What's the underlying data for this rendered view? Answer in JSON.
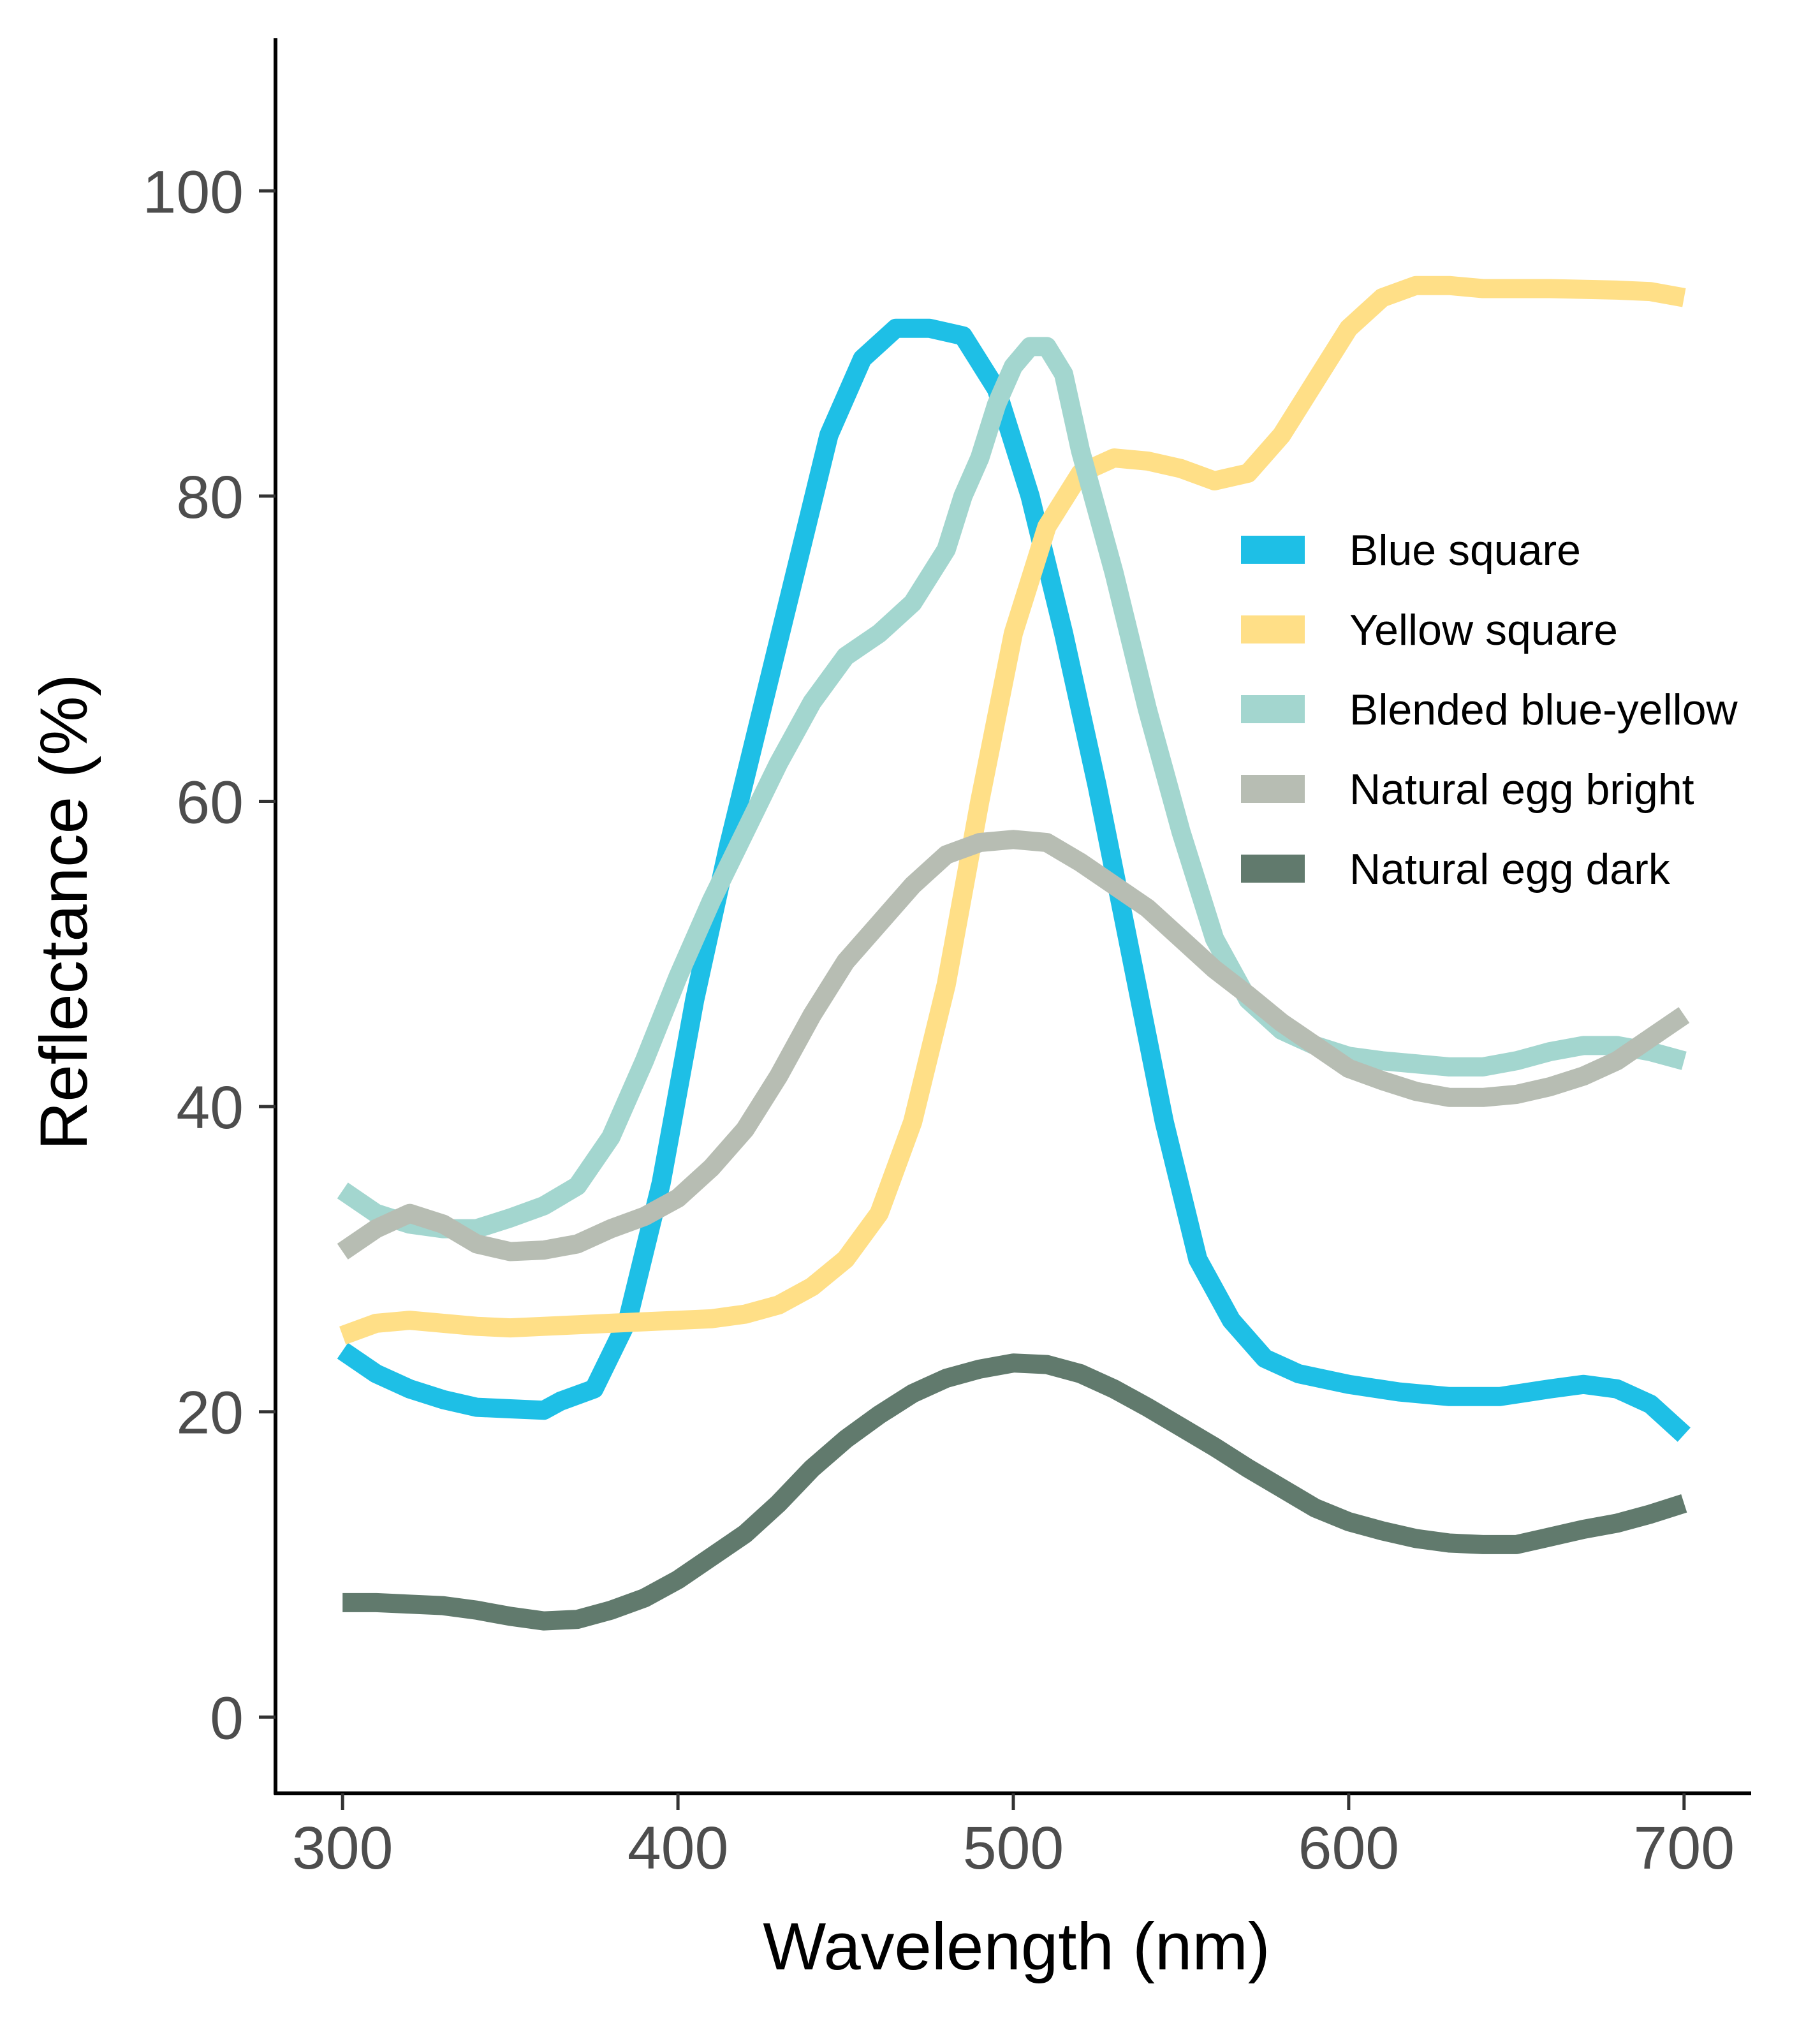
{
  "chart_data": {
    "type": "line",
    "title": "",
    "xlabel": "Wavelength (nm)",
    "ylabel": "Reflectance (%)",
    "xlim": [
      280,
      720
    ],
    "ylim": [
      -5,
      110
    ],
    "xticks": [
      300,
      400,
      500,
      600,
      700
    ],
    "yticks": [
      0,
      20,
      40,
      60,
      80,
      100
    ],
    "grid": false,
    "legend_position": "right",
    "series": [
      {
        "name": "Blue square",
        "color": "#1EBFE6",
        "points": [
          [
            300,
            24
          ],
          [
            310,
            22.5
          ],
          [
            320,
            21.5
          ],
          [
            330,
            20.8
          ],
          [
            340,
            20.3
          ],
          [
            350,
            20.2
          ],
          [
            360,
            20.1
          ],
          [
            365,
            20.7
          ],
          [
            375,
            21.5
          ],
          [
            385,
            26
          ],
          [
            395,
            35
          ],
          [
            405,
            47
          ],
          [
            415,
            57
          ],
          [
            425,
            66
          ],
          [
            435,
            75
          ],
          [
            445,
            84
          ],
          [
            455,
            89
          ],
          [
            465,
            91
          ],
          [
            475,
            91
          ],
          [
            485,
            90.5
          ],
          [
            495,
            87
          ],
          [
            505,
            80
          ],
          [
            515,
            71
          ],
          [
            525,
            61
          ],
          [
            535,
            50
          ],
          [
            545,
            39
          ],
          [
            555,
            30
          ],
          [
            565,
            26
          ],
          [
            575,
            23.5
          ],
          [
            585,
            22.5
          ],
          [
            600,
            21.8
          ],
          [
            615,
            21.3
          ],
          [
            630,
            21
          ],
          [
            645,
            21
          ],
          [
            660,
            21.5
          ],
          [
            670,
            21.8
          ],
          [
            680,
            21.5
          ],
          [
            690,
            20.5
          ],
          [
            700,
            18.5
          ]
        ]
      },
      {
        "name": "Yellow square",
        "color": "#FFDF87",
        "points": [
          [
            300,
            25
          ],
          [
            310,
            25.8
          ],
          [
            320,
            26
          ],
          [
            330,
            25.8
          ],
          [
            340,
            25.6
          ],
          [
            350,
            25.5
          ],
          [
            360,
            25.6
          ],
          [
            370,
            25.7
          ],
          [
            380,
            25.8
          ],
          [
            390,
            25.9
          ],
          [
            400,
            26
          ],
          [
            410,
            26.1
          ],
          [
            420,
            26.4
          ],
          [
            430,
            27
          ],
          [
            440,
            28.2
          ],
          [
            450,
            30
          ],
          [
            460,
            33
          ],
          [
            470,
            39
          ],
          [
            480,
            48
          ],
          [
            490,
            60
          ],
          [
            500,
            71
          ],
          [
            510,
            78
          ],
          [
            520,
            81.5
          ],
          [
            530,
            82.5
          ],
          [
            540,
            82.3
          ],
          [
            550,
            81.8
          ],
          [
            560,
            81
          ],
          [
            570,
            81.5
          ],
          [
            580,
            84
          ],
          [
            590,
            87.5
          ],
          [
            600,
            91
          ],
          [
            610,
            93
          ],
          [
            620,
            93.8
          ],
          [
            630,
            93.8
          ],
          [
            640,
            93.6
          ],
          [
            660,
            93.6
          ],
          [
            680,
            93.5
          ],
          [
            690,
            93.4
          ],
          [
            700,
            93
          ]
        ]
      },
      {
        "name": "Blended blue-yellow",
        "color": "#A3D6CF",
        "points": [
          [
            300,
            34.5
          ],
          [
            310,
            33
          ],
          [
            320,
            32.3
          ],
          [
            330,
            32
          ],
          [
            340,
            32
          ],
          [
            350,
            32.7
          ],
          [
            360,
            33.5
          ],
          [
            370,
            34.8
          ],
          [
            380,
            38
          ],
          [
            390,
            43
          ],
          [
            400,
            48.5
          ],
          [
            410,
            53.5
          ],
          [
            420,
            58
          ],
          [
            430,
            62.5
          ],
          [
            440,
            66.5
          ],
          [
            450,
            69.5
          ],
          [
            460,
            71
          ],
          [
            470,
            73
          ],
          [
            480,
            76.5
          ],
          [
            485,
            80
          ],
          [
            490,
            82.5
          ],
          [
            495,
            86
          ],
          [
            500,
            88.5
          ],
          [
            505,
            89.8
          ],
          [
            510,
            89.8
          ],
          [
            515,
            88
          ],
          [
            520,
            83
          ],
          [
            530,
            75
          ],
          [
            540,
            66
          ],
          [
            550,
            58
          ],
          [
            560,
            51
          ],
          [
            570,
            47
          ],
          [
            580,
            45
          ],
          [
            590,
            44
          ],
          [
            600,
            43.3
          ],
          [
            610,
            43
          ],
          [
            620,
            42.8
          ],
          [
            630,
            42.6
          ],
          [
            640,
            42.6
          ],
          [
            650,
            43
          ],
          [
            660,
            43.6
          ],
          [
            670,
            44
          ],
          [
            680,
            44
          ],
          [
            690,
            43.6
          ],
          [
            700,
            43
          ]
        ]
      },
      {
        "name": "Natural egg bright",
        "color": "#B7BDB3",
        "points": [
          [
            300,
            30.5
          ],
          [
            310,
            32
          ],
          [
            320,
            33
          ],
          [
            330,
            32.3
          ],
          [
            340,
            31
          ],
          [
            350,
            30.5
          ],
          [
            360,
            30.6
          ],
          [
            370,
            31
          ],
          [
            380,
            32
          ],
          [
            390,
            32.8
          ],
          [
            400,
            34
          ],
          [
            410,
            36
          ],
          [
            420,
            38.5
          ],
          [
            430,
            42
          ],
          [
            440,
            46
          ],
          [
            450,
            49.5
          ],
          [
            460,
            52
          ],
          [
            470,
            54.5
          ],
          [
            480,
            56.5
          ],
          [
            490,
            57.3
          ],
          [
            500,
            57.5
          ],
          [
            510,
            57.3
          ],
          [
            520,
            56
          ],
          [
            530,
            54.5
          ],
          [
            540,
            53
          ],
          [
            550,
            51
          ],
          [
            560,
            49
          ],
          [
            570,
            47.3
          ],
          [
            580,
            45.5
          ],
          [
            590,
            44
          ],
          [
            600,
            42.5
          ],
          [
            610,
            41.7
          ],
          [
            620,
            41
          ],
          [
            630,
            40.6
          ],
          [
            640,
            40.6
          ],
          [
            650,
            40.8
          ],
          [
            660,
            41.3
          ],
          [
            670,
            42
          ],
          [
            680,
            43
          ],
          [
            690,
            44.5
          ],
          [
            700,
            46
          ]
        ]
      },
      {
        "name": "Natural egg dark",
        "color": "#617A6D",
        "points": [
          [
            300,
            7.5
          ],
          [
            310,
            7.5
          ],
          [
            320,
            7.4
          ],
          [
            330,
            7.3
          ],
          [
            340,
            7
          ],
          [
            350,
            6.6
          ],
          [
            360,
            6.3
          ],
          [
            370,
            6.4
          ],
          [
            380,
            7
          ],
          [
            390,
            7.8
          ],
          [
            400,
            9
          ],
          [
            410,
            10.5
          ],
          [
            420,
            12
          ],
          [
            430,
            14
          ],
          [
            440,
            16.3
          ],
          [
            450,
            18.2
          ],
          [
            460,
            19.8
          ],
          [
            470,
            21.2
          ],
          [
            480,
            22.2
          ],
          [
            490,
            22.8
          ],
          [
            500,
            23.2
          ],
          [
            510,
            23.1
          ],
          [
            520,
            22.5
          ],
          [
            530,
            21.5
          ],
          [
            540,
            20.3
          ],
          [
            550,
            19
          ],
          [
            560,
            17.7
          ],
          [
            570,
            16.3
          ],
          [
            580,
            15
          ],
          [
            590,
            13.7
          ],
          [
            600,
            12.8
          ],
          [
            610,
            12.2
          ],
          [
            620,
            11.7
          ],
          [
            630,
            11.4
          ],
          [
            640,
            11.3
          ],
          [
            650,
            11.3
          ],
          [
            660,
            11.8
          ],
          [
            670,
            12.3
          ],
          [
            680,
            12.7
          ],
          [
            690,
            13.3
          ],
          [
            700,
            14
          ]
        ]
      }
    ]
  }
}
